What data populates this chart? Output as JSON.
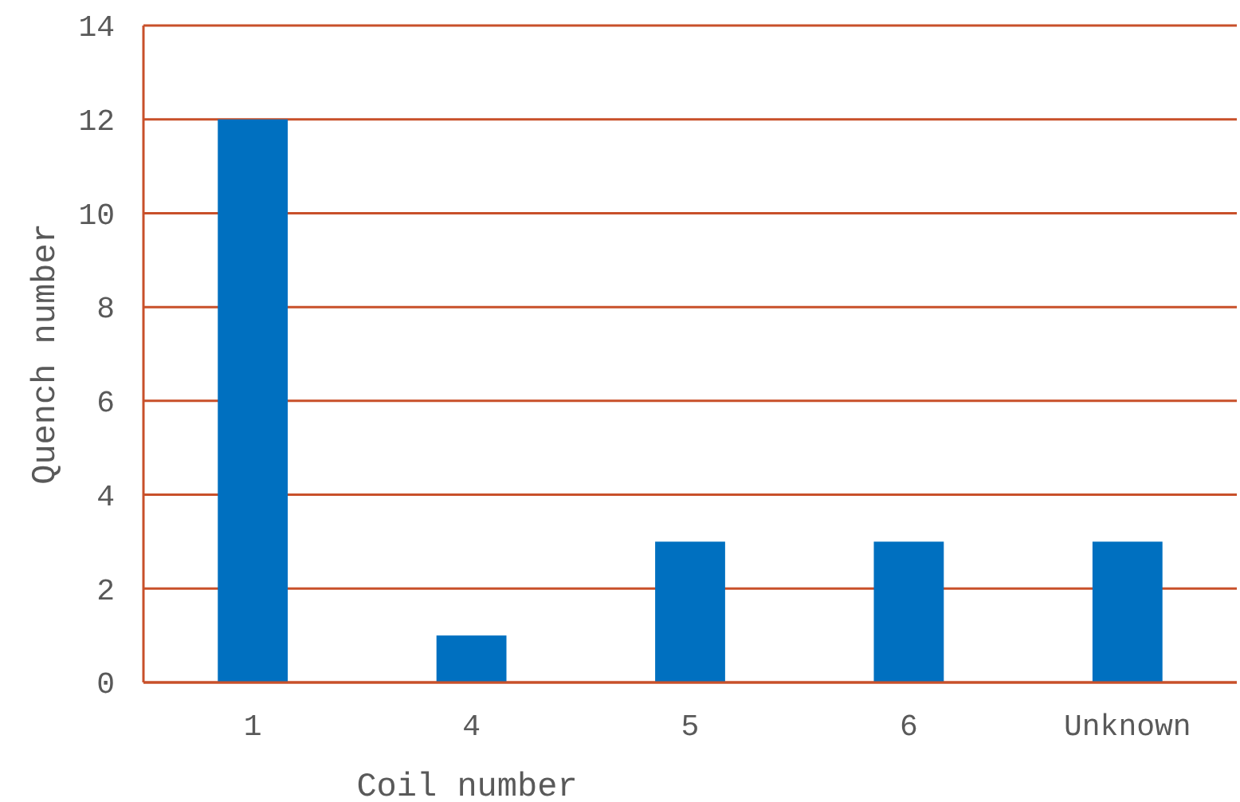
{
  "chart_data": {
    "type": "bar",
    "xlabel": "Coil number",
    "ylabel": "Quench number",
    "categories": [
      "1",
      "4",
      "5",
      "6",
      "Unknown"
    ],
    "values": [
      12,
      1,
      3,
      3,
      3
    ],
    "color": "#0070c0",
    "ylim": [
      0,
      14
    ],
    "yticks": [
      0,
      2,
      4,
      6,
      8,
      10,
      12,
      14
    ],
    "grid": "y"
  }
}
